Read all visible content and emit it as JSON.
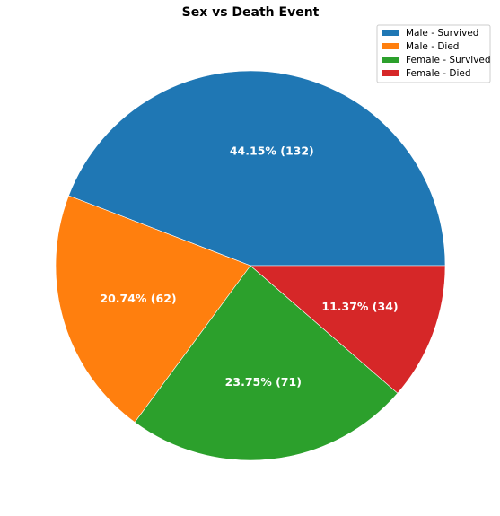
{
  "chart_data": {
    "type": "pie",
    "title": "Sex vs Death Event",
    "categories": [
      "Male - Survived",
      "Male - Died",
      "Female - Survived",
      "Female - Died"
    ],
    "values": [
      132,
      62,
      71,
      34
    ],
    "percent_labels": [
      "44.15%  (132)",
      "20.74%  (62)",
      "23.75%  (71)",
      "11.37%  (34)"
    ],
    "colors": [
      "#1f77b4",
      "#ff7f0e",
      "#2ca02c",
      "#d62728"
    ],
    "start_angle_deg": 0,
    "direction": "counterclockwise",
    "legend_position": "top-right"
  }
}
